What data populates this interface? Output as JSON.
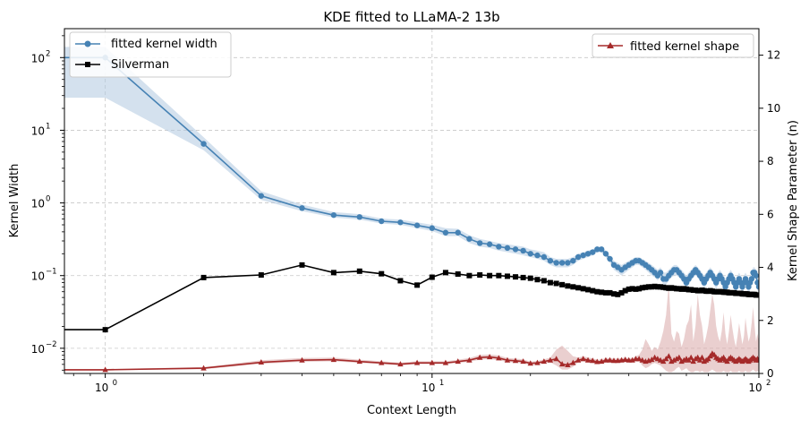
{
  "chart_data": {
    "type": "line",
    "title": "KDE fitted to LLaMA-2 13b",
    "xlabel": "Context Length",
    "ylabel": "Kernel Width",
    "y2label": "Kernel Shape Parameter (n)",
    "x_scale": "log",
    "y_scale": "log",
    "xlim": [
      0.75,
      100
    ],
    "ylim": [
      0.0045,
      250
    ],
    "y2lim": [
      0,
      13
    ],
    "grid": true,
    "x_ticks": [
      {
        "value": 1,
        "label": "10",
        "exp": "0"
      },
      {
        "value": 10,
        "label": "10",
        "exp": "1"
      },
      {
        "value": 100,
        "label": "10",
        "exp": "2"
      }
    ],
    "y_ticks": [
      {
        "value": 0.01,
        "label": "10",
        "exp": "−2"
      },
      {
        "value": 0.1,
        "label": "10",
        "exp": "−1"
      },
      {
        "value": 1,
        "label": "10",
        "exp": "0"
      },
      {
        "value": 10,
        "label": "10",
        "exp": "1"
      },
      {
        "value": 100,
        "label": "10",
        "exp": "2"
      }
    ],
    "y2_ticks": [
      {
        "value": 0,
        "label": "0"
      },
      {
        "value": 2,
        "label": "2"
      },
      {
        "value": 4,
        "label": "4"
      },
      {
        "value": 6,
        "label": "6"
      },
      {
        "value": 8,
        "label": "8"
      },
      {
        "value": 10,
        "label": "10"
      },
      {
        "value": 12,
        "label": "12"
      }
    ],
    "legend_left": [
      {
        "name": "fitted kernel width",
        "color": "#4682b4",
        "marker": "circle"
      },
      {
        "name": "Silverman",
        "color": "#000000",
        "marker": "square"
      }
    ],
    "legend_right": [
      {
        "name": "fitted kernel shape",
        "color": "#a52a2a",
        "marker": "triangle"
      }
    ],
    "series": [
      {
        "name": "fitted kernel width",
        "axis": "left",
        "color": "#4682b4",
        "band_color": "#b0c8e0",
        "marker": "circle",
        "x": [
          0.75,
          1,
          2,
          3,
          4,
          5,
          6,
          7,
          8,
          9,
          10,
          11,
          12,
          13,
          14,
          15,
          16,
          17,
          18,
          19,
          20,
          21,
          22,
          23,
          24,
          25,
          26,
          27,
          28,
          29,
          30,
          31,
          32,
          33,
          34,
          35,
          36,
          37,
          38,
          39,
          40,
          41,
          42,
          43,
          44,
          45,
          46,
          47,
          48,
          49,
          50,
          51,
          52,
          53,
          54,
          55,
          56,
          57,
          58,
          59,
          60,
          61,
          62,
          63,
          64,
          65,
          66,
          67,
          68,
          69,
          70,
          71,
          72,
          73,
          74,
          75,
          76,
          77,
          78,
          79,
          80,
          81,
          82,
          83,
          84,
          85,
          86,
          87,
          88,
          89,
          90,
          91,
          92,
          93,
          94,
          95,
          96,
          97,
          98,
          99,
          100
        ],
        "y": [
          100,
          100,
          6.5,
          1.25,
          0.85,
          0.68,
          0.64,
          0.56,
          0.54,
          0.49,
          0.45,
          0.39,
          0.39,
          0.32,
          0.28,
          0.27,
          0.25,
          0.24,
          0.23,
          0.22,
          0.2,
          0.19,
          0.18,
          0.16,
          0.15,
          0.15,
          0.15,
          0.16,
          0.18,
          0.19,
          0.2,
          0.21,
          0.23,
          0.23,
          0.2,
          0.17,
          0.14,
          0.13,
          0.12,
          0.13,
          0.14,
          0.15,
          0.16,
          0.16,
          0.15,
          0.14,
          0.13,
          0.12,
          0.11,
          0.1,
          0.11,
          0.09,
          0.09,
          0.1,
          0.11,
          0.12,
          0.12,
          0.11,
          0.1,
          0.09,
          0.08,
          0.09,
          0.1,
          0.11,
          0.12,
          0.11,
          0.1,
          0.09,
          0.08,
          0.09,
          0.1,
          0.11,
          0.1,
          0.09,
          0.08,
          0.09,
          0.1,
          0.09,
          0.08,
          0.07,
          0.08,
          0.09,
          0.1,
          0.09,
          0.08,
          0.07,
          0.08,
          0.09,
          0.08,
          0.07,
          0.08,
          0.09,
          0.08,
          0.07,
          0.08,
          0.09,
          0.11,
          0.11,
          0.1,
          0.08,
          0.07
        ],
        "lower": [
          28,
          28,
          5.3,
          1.1,
          0.77,
          0.63,
          0.59,
          0.52,
          0.5,
          0.45,
          0.41,
          0.35,
          0.35,
          0.28,
          0.25,
          0.24,
          0.22,
          0.21,
          0.2,
          0.19,
          0.18,
          0.17,
          0.16,
          0.14,
          0.13,
          0.13,
          0.13,
          0.14,
          0.16,
          0.17,
          0.18,
          0.19,
          0.21,
          0.21,
          0.18,
          0.15,
          0.12,
          0.11,
          0.1,
          0.11,
          0.12,
          0.13,
          0.14,
          0.14,
          0.13,
          0.12,
          0.11,
          0.1,
          0.095,
          0.085,
          0.095,
          0.075,
          0.075,
          0.085,
          0.095,
          0.1,
          0.1,
          0.095,
          0.085,
          0.075,
          0.065,
          0.075,
          0.085,
          0.095,
          0.1,
          0.095,
          0.085,
          0.075,
          0.065,
          0.075,
          0.085,
          0.095,
          0.085,
          0.075,
          0.065,
          0.075,
          0.085,
          0.075,
          0.065,
          0.055,
          0.065,
          0.075,
          0.085,
          0.075,
          0.065,
          0.055,
          0.065,
          0.075,
          0.065,
          0.055,
          0.065,
          0.075,
          0.065,
          0.055,
          0.065,
          0.075,
          0.095,
          0.095,
          0.085,
          0.065,
          0.055
        ],
        "upper": [
          140,
          140,
          8.0,
          1.45,
          0.95,
          0.75,
          0.7,
          0.61,
          0.59,
          0.54,
          0.5,
          0.45,
          0.44,
          0.36,
          0.32,
          0.3,
          0.28,
          0.27,
          0.26,
          0.25,
          0.23,
          0.22,
          0.21,
          0.18,
          0.17,
          0.17,
          0.17,
          0.18,
          0.2,
          0.21,
          0.22,
          0.23,
          0.25,
          0.25,
          0.22,
          0.19,
          0.16,
          0.15,
          0.14,
          0.15,
          0.16,
          0.17,
          0.18,
          0.18,
          0.17,
          0.16,
          0.15,
          0.14,
          0.13,
          0.12,
          0.13,
          0.11,
          0.11,
          0.12,
          0.13,
          0.14,
          0.14,
          0.13,
          0.12,
          0.11,
          0.1,
          0.11,
          0.12,
          0.13,
          0.14,
          0.13,
          0.12,
          0.11,
          0.1,
          0.11,
          0.12,
          0.13,
          0.12,
          0.11,
          0.1,
          0.11,
          0.12,
          0.11,
          0.1,
          0.09,
          0.1,
          0.11,
          0.12,
          0.11,
          0.1,
          0.09,
          0.1,
          0.11,
          0.1,
          0.09,
          0.1,
          0.11,
          0.1,
          0.09,
          0.1,
          0.11,
          0.13,
          0.13,
          0.12,
          0.1,
          0.09
        ]
      },
      {
        "name": "Silverman",
        "axis": "left",
        "color": "#000000",
        "marker": "square",
        "x": [
          0.75,
          1,
          2,
          3,
          4,
          5,
          6,
          7,
          8,
          9,
          10,
          11,
          12,
          13,
          14,
          15,
          16,
          17,
          18,
          19,
          20,
          21,
          22,
          23,
          24,
          25,
          26,
          27,
          28,
          29,
          30,
          31,
          32,
          33,
          34,
          35,
          36,
          37,
          38,
          39,
          40,
          41,
          42,
          43,
          44,
          45,
          46,
          47,
          48,
          49,
          50,
          51,
          52,
          53,
          54,
          55,
          56,
          57,
          58,
          59,
          60,
          61,
          62,
          63,
          64,
          65,
          66,
          67,
          68,
          69,
          70,
          71,
          72,
          73,
          74,
          75,
          76,
          77,
          78,
          79,
          80,
          81,
          82,
          83,
          84,
          85,
          86,
          87,
          88,
          89,
          90,
          91,
          92,
          93,
          94,
          95,
          96,
          97,
          98,
          99,
          100
        ],
        "y": [
          0.018,
          0.018,
          0.094,
          0.102,
          0.14,
          0.11,
          0.115,
          0.106,
          0.085,
          0.074,
          0.095,
          0.11,
          0.105,
          0.1,
          0.102,
          0.1,
          0.1,
          0.098,
          0.096,
          0.094,
          0.092,
          0.088,
          0.085,
          0.08,
          0.078,
          0.075,
          0.072,
          0.07,
          0.068,
          0.066,
          0.064,
          0.062,
          0.06,
          0.059,
          0.058,
          0.058,
          0.056,
          0.055,
          0.058,
          0.062,
          0.065,
          0.066,
          0.065,
          0.066,
          0.068,
          0.069,
          0.07,
          0.07,
          0.071,
          0.07,
          0.07,
          0.069,
          0.068,
          0.067,
          0.068,
          0.067,
          0.066,
          0.066,
          0.065,
          0.066,
          0.065,
          0.064,
          0.064,
          0.063,
          0.063,
          0.062,
          0.062,
          0.063,
          0.062,
          0.061,
          0.061,
          0.062,
          0.061,
          0.06,
          0.06,
          0.06,
          0.06,
          0.06,
          0.059,
          0.059,
          0.059,
          0.058,
          0.058,
          0.058,
          0.058,
          0.057,
          0.057,
          0.057,
          0.057,
          0.056,
          0.056,
          0.056,
          0.056,
          0.055,
          0.055,
          0.055,
          0.055,
          0.055,
          0.054,
          0.054,
          0.054
        ]
      },
      {
        "name": "fitted kernel shape",
        "axis": "right",
        "color": "#a52a2a",
        "band_color": "#d8a8a8",
        "marker": "triangle",
        "x": [
          0.75,
          1,
          2,
          3,
          4,
          5,
          6,
          7,
          8,
          9,
          10,
          11,
          12,
          13,
          14,
          15,
          16,
          17,
          18,
          19,
          20,
          21,
          22,
          23,
          24,
          25,
          26,
          27,
          28,
          29,
          30,
          31,
          32,
          33,
          34,
          35,
          36,
          37,
          38,
          39,
          40,
          41,
          42,
          43,
          44,
          45,
          46,
          47,
          48,
          49,
          50,
          51,
          52,
          53,
          54,
          55,
          56,
          57,
          58,
          59,
          60,
          61,
          62,
          63,
          64,
          65,
          66,
          67,
          68,
          69,
          70,
          71,
          72,
          73,
          74,
          75,
          76,
          77,
          78,
          79,
          80,
          81,
          82,
          83,
          84,
          85,
          86,
          87,
          88,
          89,
          90,
          91,
          92,
          93,
          94,
          95,
          96,
          97,
          98,
          99,
          100
        ],
        "y": [
          0.14,
          0.14,
          0.2,
          0.42,
          0.5,
          0.52,
          0.45,
          0.4,
          0.35,
          0.4,
          0.4,
          0.4,
          0.45,
          0.5,
          0.6,
          0.62,
          0.58,
          0.5,
          0.48,
          0.45,
          0.38,
          0.4,
          0.45,
          0.5,
          0.55,
          0.35,
          0.32,
          0.4,
          0.5,
          0.55,
          0.5,
          0.48,
          0.44,
          0.45,
          0.5,
          0.5,
          0.48,
          0.48,
          0.5,
          0.52,
          0.5,
          0.5,
          0.55,
          0.55,
          0.5,
          0.45,
          0.48,
          0.52,
          0.6,
          0.55,
          0.5,
          0.45,
          0.55,
          0.65,
          0.45,
          0.5,
          0.55,
          0.6,
          0.45,
          0.5,
          0.55,
          0.5,
          0.6,
          0.45,
          0.55,
          0.6,
          0.5,
          0.6,
          0.45,
          0.5,
          0.55,
          0.65,
          0.75,
          0.7,
          0.6,
          0.55,
          0.5,
          0.55,
          0.6,
          0.5,
          0.45,
          0.55,
          0.6,
          0.55,
          0.5,
          0.45,
          0.5,
          0.55,
          0.5,
          0.45,
          0.5,
          0.55,
          0.5,
          0.45,
          0.5,
          0.55,
          0.6,
          0.55,
          0.5,
          0.55,
          0.5
        ],
        "lower": [
          0.12,
          0.12,
          0.16,
          0.36,
          0.44,
          0.46,
          0.4,
          0.35,
          0.3,
          0.35,
          0.35,
          0.35,
          0.4,
          0.44,
          0.52,
          0.54,
          0.5,
          0.43,
          0.41,
          0.38,
          0.32,
          0.34,
          0.38,
          0.42,
          0.3,
          0.15,
          0.15,
          0.25,
          0.42,
          0.46,
          0.42,
          0.4,
          0.37,
          0.38,
          0.42,
          0.42,
          0.4,
          0.4,
          0.42,
          0.44,
          0.42,
          0.42,
          0.45,
          0.45,
          0.3,
          0.2,
          0.25,
          0.35,
          0.4,
          0.35,
          0.3,
          0.2,
          0.1,
          0.05,
          0.05,
          0.1,
          0.2,
          0.25,
          0.1,
          0.15,
          0.2,
          0.1,
          0.05,
          0.05,
          0.1,
          0.1,
          0.05,
          0.1,
          0.05,
          0.05,
          0.05,
          0.1,
          0.15,
          0.1,
          0.05,
          0.05,
          0.05,
          0.05,
          0.1,
          0.05,
          0.05,
          0.05,
          0.1,
          0.05,
          0.05,
          0.05,
          0.05,
          0.1,
          0.05,
          0.05,
          0.05,
          0.1,
          0.05,
          0.05,
          0.05,
          0.1,
          0.15,
          0.1,
          0.05,
          0.1,
          0.05
        ],
        "upper": [
          0.17,
          0.17,
          0.24,
          0.5,
          0.58,
          0.6,
          0.52,
          0.46,
          0.41,
          0.46,
          0.46,
          0.46,
          0.52,
          0.58,
          0.7,
          0.72,
          0.68,
          0.58,
          0.56,
          0.53,
          0.45,
          0.47,
          0.53,
          0.6,
          0.9,
          1.05,
          0.85,
          0.65,
          0.6,
          0.65,
          0.6,
          0.57,
          0.52,
          0.53,
          0.58,
          0.58,
          0.56,
          0.56,
          0.58,
          0.6,
          0.58,
          0.58,
          0.65,
          0.7,
          0.9,
          1.3,
          1.1,
          0.85,
          1.0,
          0.9,
          1.2,
          1.6,
          2.2,
          3.4,
          1.5,
          1.2,
          1.6,
          1.5,
          1.0,
          1.3,
          1.8,
          2.0,
          2.6,
          1.2,
          1.8,
          3.0,
          2.2,
          1.8,
          1.1,
          1.4,
          1.8,
          2.4,
          3.0,
          2.6,
          1.8,
          1.4,
          1.2,
          1.6,
          2.3,
          1.5,
          1.1,
          1.6,
          2.2,
          1.7,
          1.3,
          1.0,
          1.4,
          1.9,
          1.5,
          1.1,
          1.4,
          2.1,
          1.6,
          1.2,
          1.4,
          1.9,
          2.5,
          1.8,
          1.2,
          1.5,
          1.2
        ]
      }
    ]
  }
}
